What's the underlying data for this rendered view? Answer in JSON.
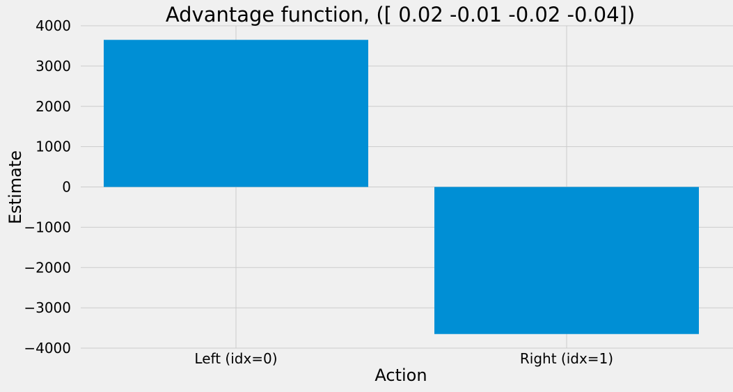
{
  "chart_data": {
    "type": "bar",
    "title": "Advantage function, ([ 0.02 -0.01 -0.02 -0.04])",
    "xlabel": "Action",
    "ylabel": "Estimate",
    "categories": [
      "Left (idx=0)",
      "Right (idx=1)"
    ],
    "values": [
      3650,
      -3650
    ],
    "ylim": [
      -4000,
      4000
    ],
    "yticks": [
      -4000,
      -3000,
      -2000,
      -1000,
      0,
      1000,
      2000,
      3000,
      4000
    ],
    "ytick_labels": [
      "−4000",
      "−3000",
      "−2000",
      "−1000",
      "0",
      "1000",
      "2000",
      "3000",
      "4000"
    ],
    "grid": true,
    "bar_color": "#008fd5",
    "background_color": "#f0f0f0",
    "grid_color": "#cbcbcb"
  }
}
